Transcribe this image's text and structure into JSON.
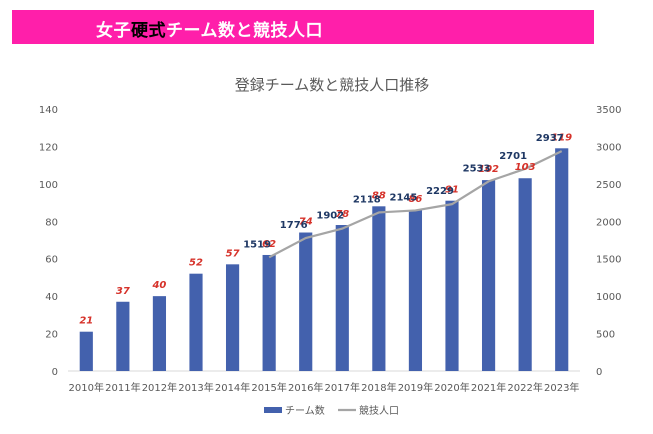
{
  "header": {
    "title_part1": "女子",
    "title_highlight": "硬式",
    "title_part2": "チーム数と競技人口"
  },
  "colors": {
    "banner": "#ff1faa",
    "bars": "#4361ad",
    "line": "#a5a5a5",
    "team_label": "#d6322a",
    "population_label": "#1f3864"
  },
  "chart_data": {
    "type": "bar",
    "title": "登録チーム数と競技人口推移",
    "categories": [
      "2010年",
      "2011年",
      "2012年",
      "2013年",
      "2014年",
      "2015年",
      "2016年",
      "2017年",
      "2018年",
      "2019年",
      "2020年",
      "2021年",
      "2022年",
      "2023年"
    ],
    "series": [
      {
        "name": "チーム数",
        "type": "bar",
        "axis": "left",
        "values": [
          21,
          37,
          40,
          52,
          57,
          62,
          74,
          78,
          88,
          86,
          91,
          102,
          103,
          119
        ]
      },
      {
        "name": "競技人口",
        "type": "line",
        "axis": "right",
        "values": [
          null,
          null,
          null,
          null,
          null,
          1519,
          1776,
          1902,
          2118,
          2145,
          2229,
          2533,
          2701,
          2937
        ],
        "labels": [
          "",
          "",
          "",
          "",
          "",
          "1519",
          "1776",
          "1902",
          "2118",
          "2145",
          "2229",
          "2533",
          "2701",
          "2937"
        ]
      }
    ],
    "y_left": {
      "min": 0,
      "max": 140,
      "ticks": [
        0,
        20,
        40,
        60,
        80,
        100,
        120,
        140
      ]
    },
    "y_right": {
      "min": 0,
      "max": 3500,
      "ticks": [
        0,
        500,
        1000,
        1500,
        2000,
        2500,
        3000,
        3500
      ]
    },
    "grid": false,
    "legend": "bottom"
  }
}
